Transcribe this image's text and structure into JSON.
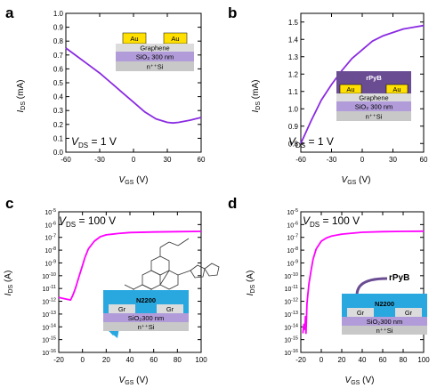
{
  "panels": [
    {
      "id": "a",
      "letter": "a",
      "ylabel_main": "I",
      "ylabel_sub": "DS",
      "ylabel_unit": " (mA)",
      "xlabel_main": "V",
      "xlabel_sub": "GS",
      "xlabel_unit": " (V)",
      "vds_main": "V",
      "vds_sub": "DS",
      "vds_value": " = 1 V",
      "device": {
        "top": [
          "Au",
          "Au"
        ],
        "middle": "Graphene",
        "oxide": "SiO₂ 300 nm",
        "substrate": "n⁺⁺Si"
      }
    },
    {
      "id": "b",
      "letter": "b",
      "ylabel_main": "I",
      "ylabel_sub": "DS",
      "ylabel_unit": " (mA)",
      "xlabel_main": "V",
      "xlabel_sub": "GS",
      "xlabel_unit": " (V)",
      "vds_main": "V",
      "vds_sub": "DS",
      "vds_value": " = 1 V",
      "device": {
        "coating": "rPyB",
        "top": [
          "Au",
          "Au"
        ],
        "middle": "Graphene",
        "oxide": "SiO₂ 300 nm",
        "substrate": "n⁺⁺Si"
      }
    },
    {
      "id": "c",
      "letter": "c",
      "ylabel_main": "I",
      "ylabel_sub": "DS",
      "ylabel_unit": " (A)",
      "xlabel_main": "V",
      "xlabel_sub": "GS",
      "xlabel_unit": " (V)",
      "vds_main": "V",
      "vds_sub": "DS",
      "vds_value": " = 100 V",
      "device": {
        "semiconductor": "N2200",
        "electrodes": [
          "Gr",
          "Gr"
        ],
        "oxide": "SiO₂300 nm",
        "substrate": "n⁺⁺Si"
      }
    },
    {
      "id": "d",
      "letter": "d",
      "ylabel_main": "I",
      "ylabel_sub": "DS",
      "ylabel_unit": " (A)",
      "xlabel_main": "V",
      "xlabel_sub": "GS",
      "xlabel_unit": " (V)",
      "vds_main": "V",
      "vds_sub": "DS",
      "vds_value": " = 100 V",
      "device": {
        "arrow_label": "rPyB",
        "semiconductor": "N2200",
        "electrodes": [
          "Gr",
          "Gr"
        ],
        "oxide": "SiO₂300 nm",
        "substrate": "n⁺⁺Si"
      }
    }
  ],
  "chart_data": [
    {
      "panel": "a",
      "type": "line",
      "color": "#8a2be2",
      "xlim": [
        -60,
        60
      ],
      "ylim": [
        0,
        1.0
      ],
      "xticks": [
        -60,
        -30,
        0,
        30,
        60
      ],
      "yticks": [
        0.0,
        0.1,
        0.2,
        0.3,
        0.4,
        0.5,
        0.6,
        0.7,
        0.8,
        0.9,
        1.0
      ],
      "xtick_labels": [
        "-60",
        "-30",
        "0",
        "30",
        "60"
      ],
      "ytick_labels": [
        "0.0",
        "0.1",
        "0.2",
        "0.3",
        "0.4",
        "0.5",
        "0.6",
        "0.7",
        "0.8",
        "0.9",
        "1.0"
      ],
      "x": [
        -60,
        -50,
        -40,
        -30,
        -20,
        -10,
        0,
        10,
        20,
        30,
        35,
        40,
        50,
        60
      ],
      "y": [
        0.75,
        0.69,
        0.63,
        0.57,
        0.5,
        0.43,
        0.36,
        0.29,
        0.24,
        0.215,
        0.21,
        0.215,
        0.23,
        0.25
      ]
    },
    {
      "panel": "b",
      "type": "line",
      "color": "#8a2be2",
      "xlim": [
        -60,
        60
      ],
      "ylim": [
        0.75,
        1.55
      ],
      "xticks": [
        -60,
        -30,
        0,
        30,
        60
      ],
      "yticks": [
        0.8,
        0.9,
        1.0,
        1.1,
        1.2,
        1.3,
        1.4,
        1.5
      ],
      "xtick_labels": [
        "-60",
        "-30",
        "0",
        "30",
        "60"
      ],
      "ytick_labels": [
        "0.8",
        "0.9",
        "1.0",
        "1.1",
        "1.2",
        "1.3",
        "1.4",
        "1.5"
      ],
      "x": [
        -60,
        -50,
        -40,
        -30,
        -20,
        -10,
        0,
        10,
        20,
        30,
        40,
        50,
        60
      ],
      "y": [
        0.8,
        0.93,
        1.05,
        1.14,
        1.22,
        1.29,
        1.34,
        1.39,
        1.42,
        1.44,
        1.46,
        1.47,
        1.48
      ]
    },
    {
      "panel": "c",
      "type": "line",
      "color": "#ff00ff",
      "yscale": "log",
      "xlim": [
        -20,
        100
      ],
      "ylim_exp": [
        -16,
        -5
      ],
      "xticks": [
        -20,
        0,
        20,
        40,
        60,
        80,
        100
      ],
      "yticks_exp": [
        -16,
        -15,
        -14,
        -13,
        -12,
        -11,
        -10,
        -9,
        -8,
        -7,
        -6,
        -5
      ],
      "xtick_labels": [
        "-20",
        "0",
        "20",
        "40",
        "60",
        "80",
        "100"
      ],
      "ytick_base": "10",
      "ytick_exps": [
        "-16",
        "-15",
        "-14",
        "-13",
        "-12",
        "-11",
        "-10",
        "-9",
        "-8",
        "-7",
        "-6",
        "-5"
      ],
      "x": [
        -20,
        -15,
        -10,
        -8,
        -6,
        -4,
        -2,
        0,
        2,
        5,
        10,
        15,
        20,
        30,
        40,
        60,
        80,
        100
      ],
      "y_exp": [
        -11.7,
        -11.8,
        -11.9,
        -11.5,
        -11.0,
        -10.4,
        -9.8,
        -9.2,
        -8.6,
        -7.9,
        -7.3,
        -6.95,
        -6.8,
        -6.7,
        -6.62,
        -6.58,
        -6.55,
        -6.53
      ]
    },
    {
      "panel": "d",
      "type": "line",
      "color": "#ff00ff",
      "yscale": "log",
      "xlim": [
        -20,
        100
      ],
      "ylim_exp": [
        -16,
        -5
      ],
      "xticks": [
        -20,
        0,
        20,
        40,
        60,
        80,
        100
      ],
      "yticks_exp": [
        -16,
        -15,
        -14,
        -13,
        -12,
        -11,
        -10,
        -9,
        -8,
        -7,
        -6,
        -5
      ],
      "xtick_labels": [
        "-20",
        "0",
        "20",
        "40",
        "60",
        "80",
        "100"
      ],
      "ytick_base": "10",
      "ytick_exps": [
        "-16",
        "-15",
        "-14",
        "-13",
        "-12",
        "-11",
        "-10",
        "-9",
        "-8",
        "-7",
        "-6",
        "-5"
      ],
      "x": [
        -18,
        -17,
        -16,
        -15.5,
        -15,
        -14.5,
        -14,
        -13,
        -12,
        -10,
        -8,
        -5,
        0,
        5,
        10,
        20,
        40,
        60,
        80,
        100
      ],
      "y_exp": [
        -14.5,
        -13.8,
        -14.2,
        -13.2,
        -14.5,
        -13.5,
        -12.2,
        -11.4,
        -10.6,
        -9.6,
        -8.7,
        -7.9,
        -7.3,
        -7.05,
        -6.9,
        -6.75,
        -6.6,
        -6.55,
        -6.53,
        -6.52
      ]
    }
  ]
}
